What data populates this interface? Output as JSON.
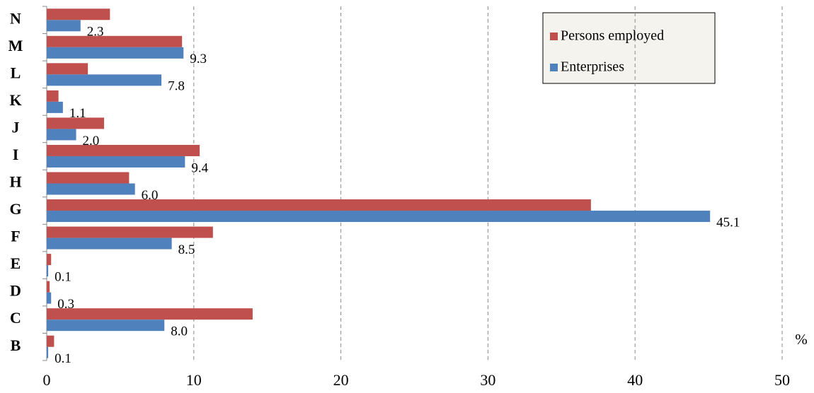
{
  "chart_data": {
    "type": "hbar",
    "categories": [
      "B",
      "C",
      "D",
      "E",
      "F",
      "G",
      "H",
      "I",
      "J",
      "K",
      "L",
      "M",
      "N"
    ],
    "series": [
      {
        "name": "Persons employed",
        "color": "#c0504d",
        "values": [
          0.5,
          14.0,
          0.2,
          0.3,
          11.3,
          37.0,
          5.6,
          10.4,
          3.9,
          0.8,
          2.8,
          9.2,
          4.3
        ]
      },
      {
        "name": "Enterprises",
        "color": "#4f81bd",
        "values": [
          0.1,
          8.0,
          0.3,
          0.1,
          8.5,
          45.1,
          6.0,
          9.4,
          2.0,
          1.1,
          7.8,
          9.3,
          2.3
        ],
        "value_labels": [
          "0.1",
          "8.0",
          "0.3",
          "0.1",
          "8.5",
          "45.1",
          "6.0",
          "9.4",
          "2.0",
          "1.1",
          "7.8",
          "9.3",
          "2.3"
        ]
      }
    ],
    "x_label": "%",
    "xlim": [
      0,
      50
    ],
    "xticks": [
      0,
      10,
      20,
      30,
      40,
      50
    ],
    "grid": true,
    "legend": "upper right"
  }
}
